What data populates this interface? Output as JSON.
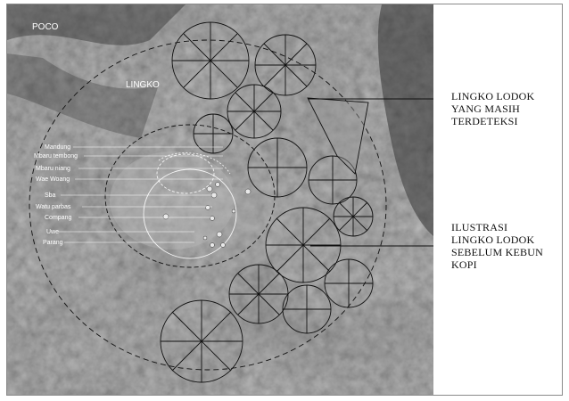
{
  "map": {
    "region_labels": [
      "POCO",
      "LINGKO"
    ],
    "site_labels": [
      "Mandung",
      "Mbaru tembong",
      "Mbaru niang",
      "Wae Woang",
      "Sba",
      "Watu parbas",
      "Compang",
      "Uwe",
      "Parang"
    ],
    "callouts": [
      {
        "lines": [
          "LINGKO LODOK",
          "YANG MASIH",
          "TERDETEKSI"
        ]
      },
      {
        "lines": [
          "ILUSTRASI",
          "LINGKO LODOK",
          "SEBELUM KEBUN",
          "KOPI"
        ]
      }
    ]
  },
  "colors": {
    "aerial_base": "#8f8f8f",
    "overlay_line": "#111111",
    "label_text": "#ffffff"
  }
}
